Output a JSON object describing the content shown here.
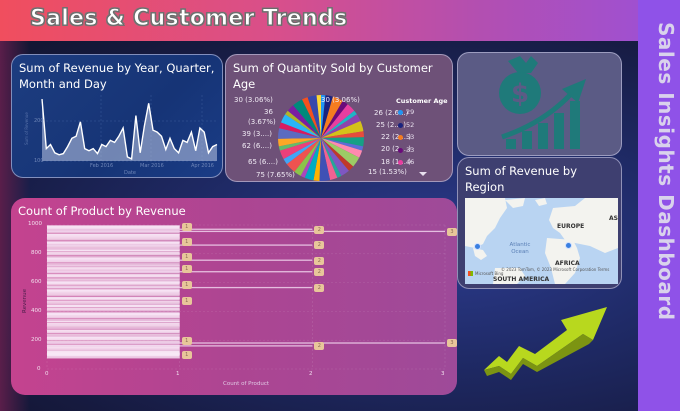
{
  "header": {
    "title": "Sales & Customer Trends"
  },
  "sidebar": {
    "title": "Sales Insights Dashboard"
  },
  "colors": {
    "header_gradient_start": "#f04e5e",
    "header_gradient_end": "#9b50d8",
    "side_strip": "#8f52e8",
    "money_icon": "#1f7a7a",
    "arrow_3d": "#b8d81e",
    "bar_card": "#b4458f",
    "badge": "#e8c69a",
    "map_pin": "#3a7fe0"
  },
  "cards": {
    "revenue_line": {
      "title": "Sum of Revenue by Year, Quarter, Month and Day",
      "y_axis_label": "Sum of Revenue",
      "x_axis_label": "Date",
      "y_ticks": [
        "200",
        "100"
      ],
      "x_ticks": [
        "Feb 2016",
        "Mar 2016",
        "Apr 2016"
      ]
    },
    "quantity_pie": {
      "title": "Sum of Quantity Sold by Customer Age",
      "legend_title": "Customer Age",
      "legend": [
        {
          "label": "29",
          "color": "#2196f3"
        },
        {
          "label": "52",
          "color": "#1a237e"
        },
        {
          "label": "53",
          "color": "#f57c20"
        },
        {
          "label": "33",
          "color": "#6a0a7a"
        },
        {
          "label": "46",
          "color": "#e83ea0"
        }
      ],
      "legend_scroll_icon": "chevron-down",
      "labels_left": [
        "30 (3.06%)",
        "36",
        "(3.67%)",
        "39 (3....)",
        "62 (6....)",
        "65 (6....)",
        "75 (7.65%)"
      ],
      "labels_right": [
        "30 (3.06%)",
        "26 (2.6...)",
        "25 (2....)",
        "22 (2....)",
        "20 (2....)",
        "18 (1....)",
        "15 (1.53%)"
      ]
    },
    "money_icon": {
      "icon": "money-bag-growth-chart"
    },
    "region_map": {
      "title": "Sum of Revenue by Region",
      "labels": {
        "europe": "EUROPE",
        "africa": "AFRICA",
        "south_america": "SOUTH AMERICA",
        "asia": "AS",
        "ocean": "Atlantic Ocean"
      },
      "copyright": "© 2023 TomTom, © 2023 Microsoft Corporation  Terms",
      "brand": "Microsoft Bing"
    },
    "product_bar": {
      "title": "Count of Product by Revenue",
      "y_axis_label": "Revenue",
      "x_axis_label": "Count of Product",
      "y_ticks": [
        "1000",
        "800",
        "600",
        "400",
        "200",
        "0"
      ],
      "x_ticks": [
        "0",
        "1",
        "2",
        "3"
      ]
    },
    "arrow_decoration": {
      "icon": "growth-arrow-3d"
    }
  },
  "chart_data": [
    {
      "type": "area",
      "title": "Sum of Revenue by Year, Quarter, Month and Day",
      "xlabel": "Date",
      "ylabel": "Sum of Revenue",
      "x_ticks": [
        "Feb 2016",
        "Mar 2016",
        "Apr 2016"
      ],
      "y_ticks": [
        100,
        200
      ],
      "grid": true,
      "values": [
        240,
        120,
        130,
        110,
        105,
        108,
        125,
        145,
        150,
        185,
        120,
        115,
        120,
        108,
        130,
        125,
        140,
        135,
        150,
        170,
        100,
        95,
        200,
        110,
        175,
        230,
        165,
        160,
        150,
        118,
        145,
        120,
        110,
        140,
        135,
        160,
        115,
        170,
        160,
        110,
        125,
        130
      ]
    },
    {
      "type": "pie",
      "title": "Sum of Quantity Sold by Customer Age",
      "legend_title": "Customer Age",
      "legend_position": "right",
      "labels": [
        "75",
        "65",
        "62",
        "39",
        "36",
        "30",
        "30",
        "26",
        "25",
        "22",
        "20",
        "18",
        "15"
      ],
      "values_percent": [
        7.65,
        6.6,
        6.3,
        3.9,
        3.67,
        3.06,
        3.06,
        2.6,
        2.5,
        2.2,
        2.0,
        1.8,
        1.53
      ]
    },
    {
      "type": "bar",
      "orientation": "horizontal",
      "title": "Count of Product by Revenue",
      "xlabel": "Count of Product",
      "ylabel": "Revenue",
      "xlim": [
        0,
        3
      ],
      "ylim": [
        0,
        1000
      ],
      "x_ticks": [
        0,
        1,
        2,
        3
      ],
      "y_ticks": [
        0,
        200,
        400,
        600,
        800,
        1000
      ],
      "grid": true,
      "highlighted_bars": [
        {
          "revenue": 990,
          "count": 1
        },
        {
          "revenue": 975,
          "count": 2
        },
        {
          "revenue": 960,
          "count": 3
        },
        {
          "revenue": 890,
          "count": 1
        },
        {
          "revenue": 865,
          "count": 2
        },
        {
          "revenue": 785,
          "count": 1
        },
        {
          "revenue": 760,
          "count": 2
        },
        {
          "revenue": 700,
          "count": 1
        },
        {
          "revenue": 680,
          "count": 2
        },
        {
          "revenue": 590,
          "count": 1
        },
        {
          "revenue": 570,
          "count": 2
        },
        {
          "revenue": 480,
          "count": 1
        },
        {
          "revenue": 200,
          "count": 1
        },
        {
          "revenue": 185,
          "count": 3
        },
        {
          "revenue": 165,
          "count": 2
        },
        {
          "revenue": 105,
          "count": 1
        }
      ]
    }
  ]
}
